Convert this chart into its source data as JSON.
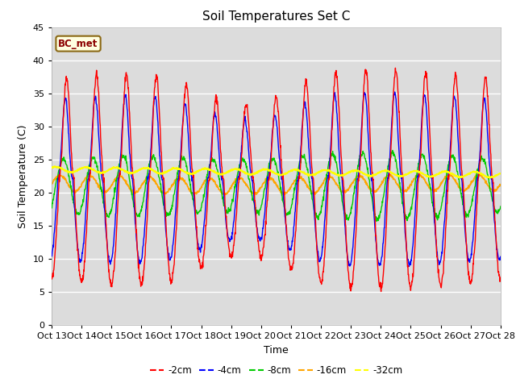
{
  "title": "Soil Temperatures Set C",
  "xlabel": "Time",
  "ylabel": "Soil Temperature (C)",
  "ylim": [
    0,
    45
  ],
  "yticks": [
    0,
    5,
    10,
    15,
    20,
    25,
    30,
    35,
    40,
    45
  ],
  "xtick_labels": [
    "Oct 13",
    "Oct 14",
    "Oct 15",
    "Oct 16",
    "Oct 17",
    "Oct 18",
    "Oct 19",
    "Oct 20",
    "Oct 21",
    "Oct 22",
    "Oct 23",
    "Oct 24",
    "Oct 25",
    "Oct 26",
    "Oct 27",
    "Oct 28"
  ],
  "annotation_text": "BC_met",
  "annotation_color": "#8B0000",
  "annotation_bg": "#FFFFE0",
  "colors": {
    "-2cm": "#FF0000",
    "-4cm": "#0000FF",
    "-8cm": "#00CC00",
    "-16cm": "#FFA500",
    "-32cm": "#FFFF00"
  },
  "legend_labels": [
    "-2cm",
    "-4cm",
    "-8cm",
    "-16cm",
    "-32cm"
  ],
  "n_points": 1440,
  "bg_color": "#E8E8E8",
  "fig_bg": "#FFFFFF",
  "plot_bg": "#DCDCDC"
}
